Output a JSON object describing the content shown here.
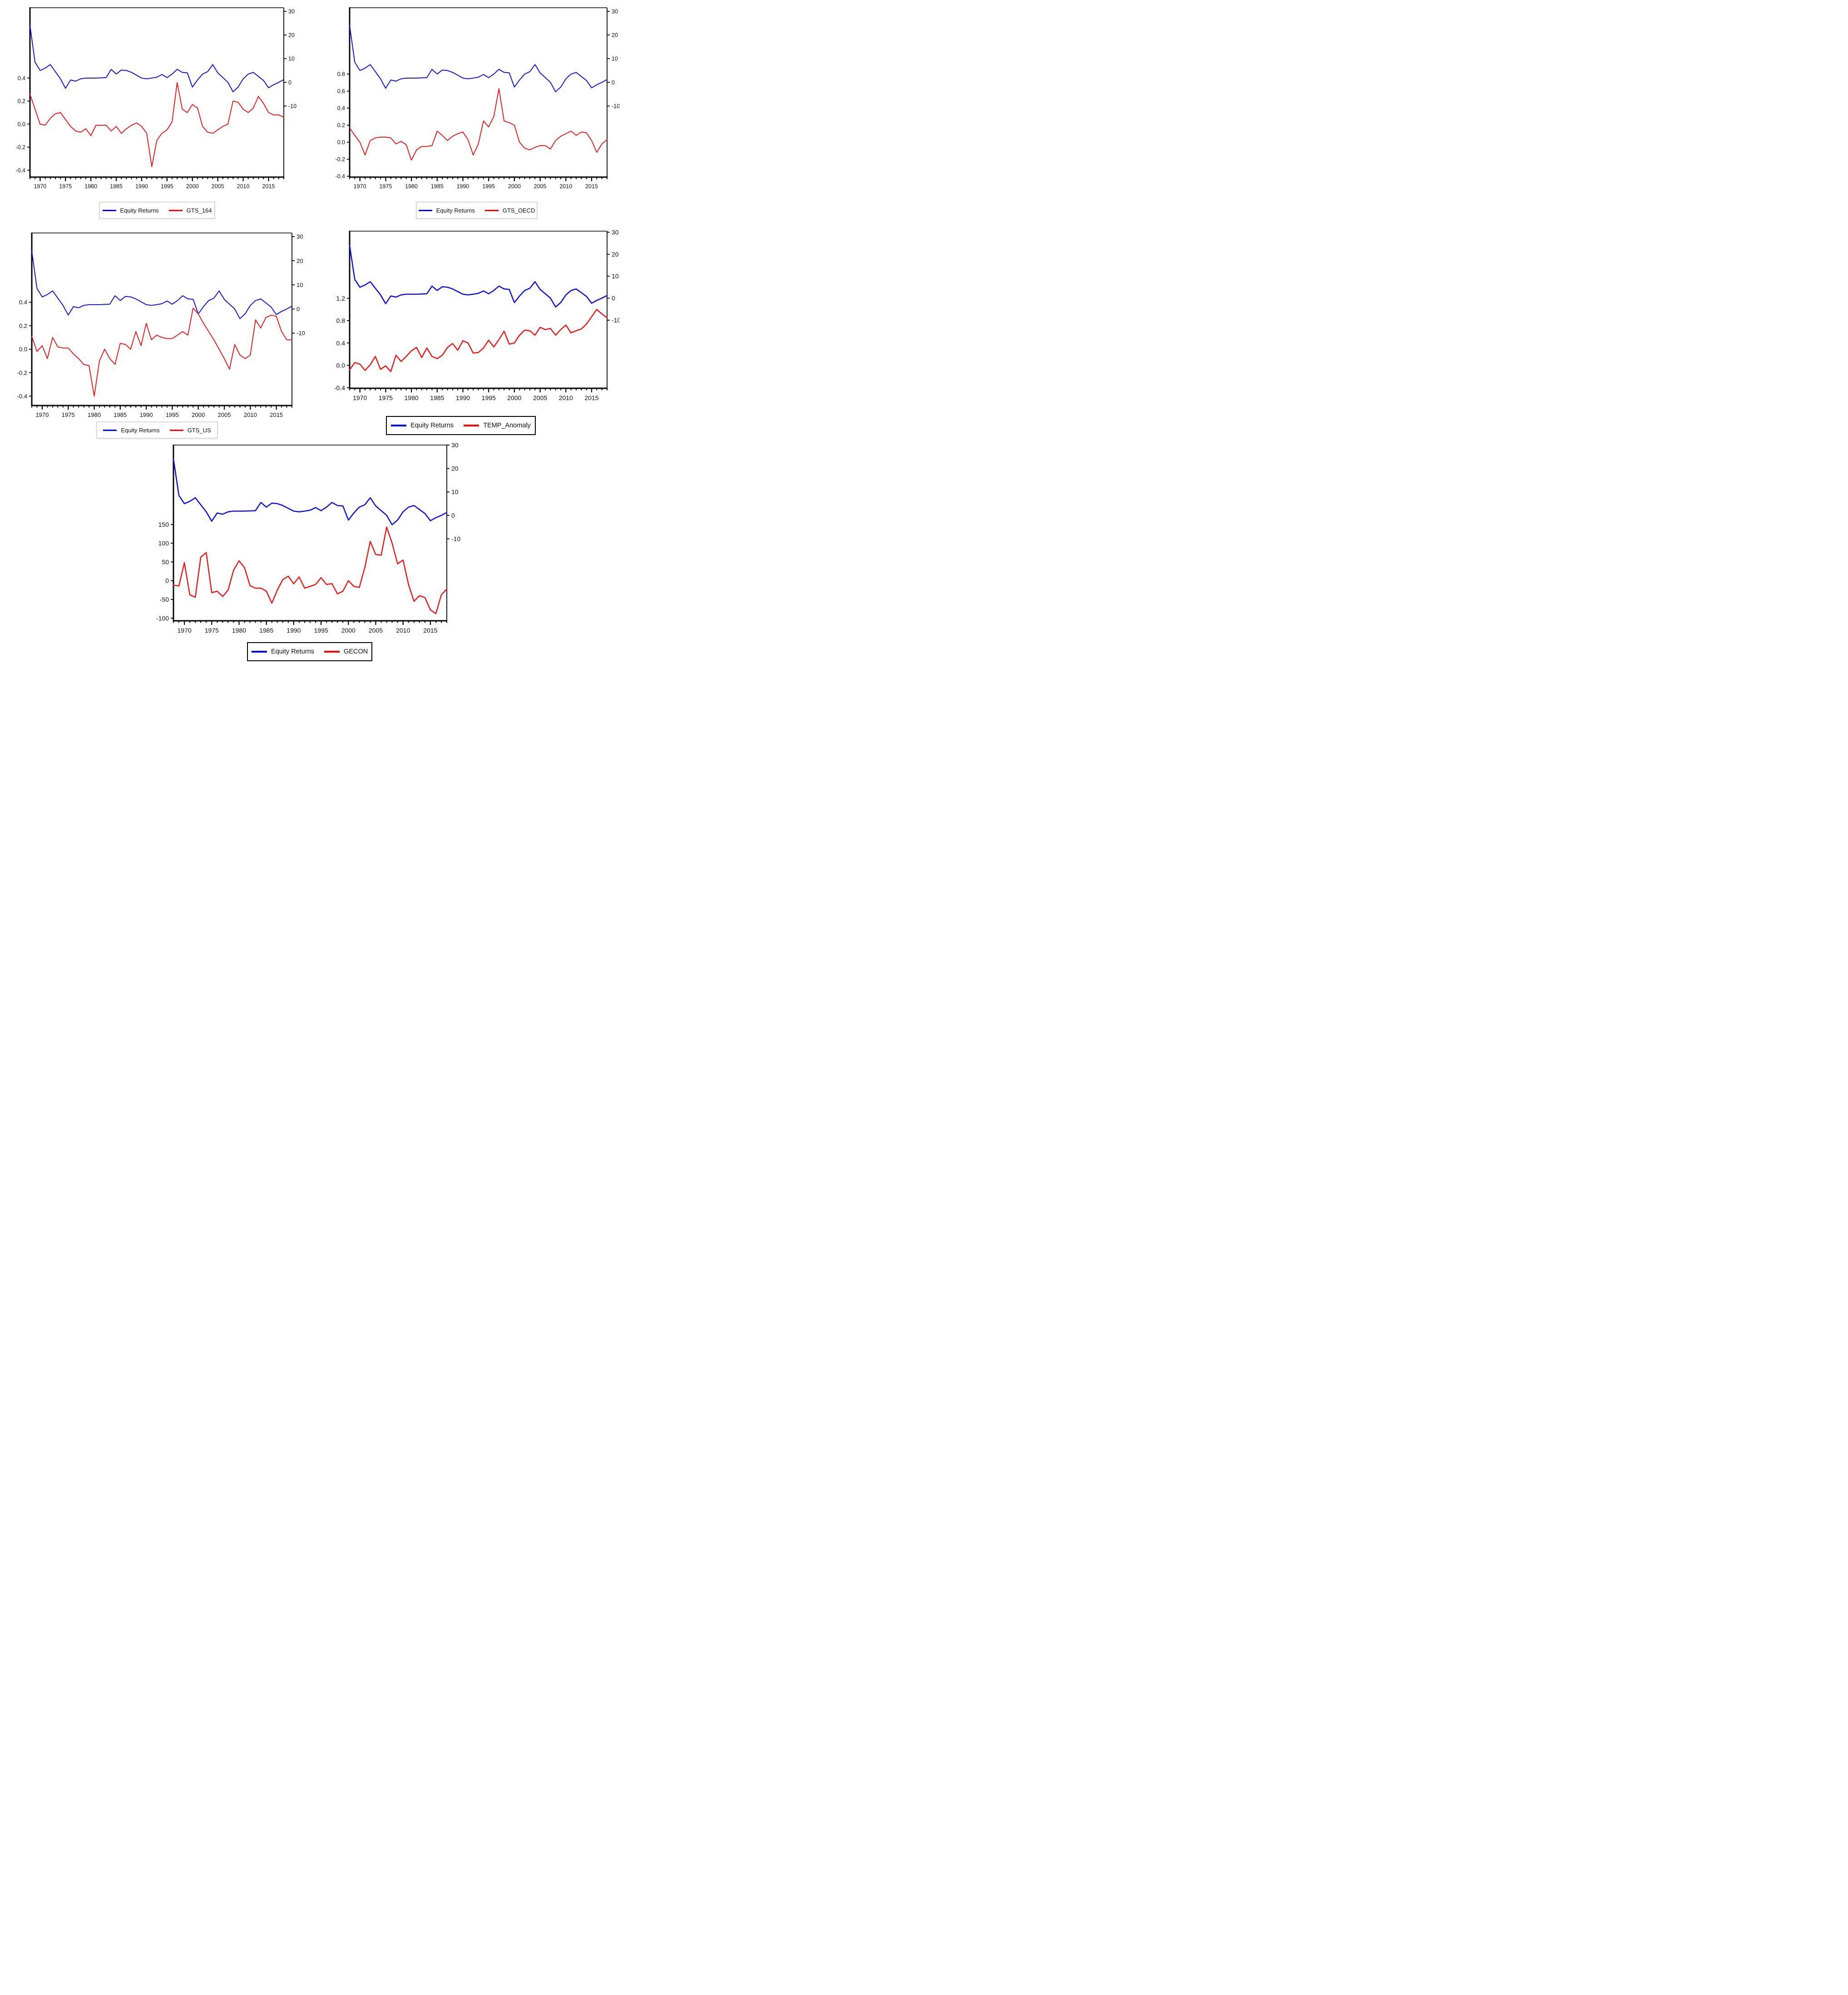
{
  "page": {
    "background": "#ffffff",
    "text_color": "#111111"
  },
  "colors": {
    "equity_line": "#1414d2",
    "series_line": "#e41f1f",
    "legend_blue": "#0000ff",
    "legend_red": "#ff0000",
    "legend_border_gray": "#d9d9d9",
    "legend_border_black": "#000000",
    "axis_color": "#000000"
  },
  "years": [
    1968,
    1969,
    1970,
    1971,
    1972,
    1973,
    1974,
    1975,
    1976,
    1977,
    1978,
    1979,
    1980,
    1981,
    1982,
    1983,
    1984,
    1985,
    1986,
    1987,
    1988,
    1989,
    1990,
    1991,
    1992,
    1993,
    1994,
    1995,
    1996,
    1997,
    1998,
    1999,
    2000,
    2001,
    2002,
    2003,
    2004,
    2005,
    2006,
    2007,
    2008,
    2009,
    2010,
    2011,
    2012,
    2013,
    2014,
    2015,
    2016,
    2017,
    2018
  ],
  "equity_returns": [
    24,
    8.5,
    5,
    6,
    7.5,
    4.5,
    1.5,
    -2.5,
    1,
    0.5,
    1.5,
    1.8,
    1.8,
    1.8,
    1.9,
    2,
    5.5,
    3.5,
    5.2,
    5,
    4.2,
    3,
    1.8,
    1.5,
    1.8,
    2.2,
    3.3,
    2,
    3.5,
    5.5,
    4.2,
    4,
    -2,
    1,
    3.5,
    4.5,
    7.5,
    4,
    2,
    0,
    -4,
    -2,
    1.5,
    3.5,
    4.2,
    2.5,
    0.8,
    -2.3,
    -1,
    0,
    1.2
  ],
  "chart_data": [
    {
      "id": "gts164",
      "type": "line",
      "title": "",
      "legend_border": "#d9d9d9",
      "left_axis": {
        "labels": [
          "0.4",
          "0.2",
          "0.0",
          "-0.2",
          "-0.4"
        ],
        "ticks": [
          0.4,
          0.2,
          0.0,
          -0.2,
          -0.4
        ],
        "top": 1.01,
        "bottom": -0.46
      },
      "right_axis": {
        "labels": [
          "30",
          "20",
          "10",
          "0",
          "-10"
        ],
        "ticks": [
          30,
          20,
          10,
          0,
          -10
        ],
        "top": 31.5,
        "bottom": -40
      },
      "x_axis": {
        "start": 1968,
        "end": 2018,
        "minor_step": 1,
        "major_ticks": [
          1970,
          1975,
          1980,
          1985,
          1990,
          1995,
          2000,
          2005,
          2010,
          2015
        ]
      },
      "series": [
        {
          "name": "Equity Returns",
          "axis": "right",
          "color": "#1414d2",
          "legend_color": "#0000ff",
          "width": 2,
          "values_from": "equity_returns"
        },
        {
          "name": "GTS_164",
          "axis": "left",
          "color": "#e41f1f",
          "legend_color": "#ff0000",
          "width": 2,
          "values": [
            0.26,
            0.13,
            0,
            -0.01,
            0.05,
            0.09,
            0.1,
            0.04,
            -0.02,
            -0.06,
            -0.07,
            -0.04,
            -0.1,
            -0.01,
            -0.01,
            -0.01,
            -0.06,
            -0.02,
            -0.08,
            -0.04,
            -0.01,
            0.01,
            -0.02,
            -0.08,
            -0.37,
            -0.14,
            -0.08,
            -0.05,
            0.02,
            0.36,
            0.13,
            0.1,
            0.17,
            0.14,
            -0.02,
            -0.07,
            -0.08,
            -0.05,
            -0.02,
            0,
            0.2,
            0.19,
            0.13,
            0.1,
            0.14,
            0.24,
            0.18,
            0.1,
            0.08,
            0.08,
            0.06
          ]
        }
      ]
    },
    {
      "id": "gtsoecd",
      "type": "line",
      "title": "",
      "legend_border": "#d9d9d9",
      "left_axis": {
        "labels": [
          "0.8",
          "0.6",
          "0.4",
          "0.2",
          "0.0",
          "-0.2",
          "-0.4"
        ],
        "ticks": [
          0.8,
          0.6,
          0.4,
          0.2,
          0.0,
          -0.2,
          -0.4
        ],
        "top": 1.58,
        "bottom": -0.41
      },
      "right_axis": {
        "labels": [
          "30",
          "20",
          "10",
          "0",
          "-10"
        ],
        "ticks": [
          30,
          20,
          10,
          0,
          -10
        ],
        "top": 31.5,
        "bottom": -40
      },
      "x_axis": {
        "start": 1968,
        "end": 2018,
        "minor_step": 1,
        "major_ticks": [
          1970,
          1975,
          1980,
          1985,
          1990,
          1995,
          2000,
          2005,
          2010,
          2015
        ]
      },
      "series": [
        {
          "name": "Equity Returns",
          "axis": "right",
          "color": "#1414d2",
          "legend_color": "#0000ff",
          "width": 2,
          "values_from": "equity_returns"
        },
        {
          "name": "GTS_OECD",
          "axis": "left",
          "color": "#e41f1f",
          "legend_color": "#ff0000",
          "width": 2,
          "values": [
            0.17,
            0.08,
            0,
            -0.15,
            0.02,
            0.05,
            0.06,
            0.06,
            0.05,
            -0.02,
            0.01,
            -0.03,
            -0.21,
            -0.09,
            -0.05,
            -0.05,
            -0.04,
            0.13,
            0.08,
            0.02,
            0.07,
            0.1,
            0.12,
            0.03,
            -0.15,
            -0.02,
            0.25,
            0.18,
            0.3,
            0.63,
            0.25,
            0.23,
            0.2,
            0,
            -0.07,
            -0.09,
            -0.06,
            -0.04,
            -0.04,
            -0.08,
            0.02,
            0.07,
            0.1,
            0.13,
            0.08,
            0.12,
            0.11,
            0.02,
            -0.12,
            -0.02,
            0.03
          ]
        }
      ]
    },
    {
      "id": "gtsus",
      "type": "line",
      "title": "",
      "legend_border": "#d9d9d9",
      "left_axis": {
        "labels": [
          "0.4",
          "0.2",
          "0.0",
          "-0.2",
          "-0.4"
        ],
        "ticks": [
          0.4,
          0.2,
          0.0,
          -0.2,
          -0.4
        ],
        "top": 0.99,
        "bottom": -0.48
      },
      "right_axis": {
        "labels": [
          "30",
          "20",
          "10",
          "0",
          "-10"
        ],
        "ticks": [
          30,
          20,
          10,
          0,
          -10
        ],
        "top": 31.5,
        "bottom": -40
      },
      "x_axis": {
        "start": 1968,
        "end": 2018,
        "minor_step": 1,
        "major_ticks": [
          1970,
          1975,
          1980,
          1985,
          1990,
          1995,
          2000,
          2005,
          2010,
          2015
        ]
      },
      "series": [
        {
          "name": "Equity Returns",
          "axis": "right",
          "color": "#1414d2",
          "legend_color": "#0000ff",
          "width": 2,
          "values_from": "equity_returns"
        },
        {
          "name": "GTS_US",
          "axis": "left",
          "color": "#e41f1f",
          "legend_color": "#ff0000",
          "width": 2,
          "values": [
            0.11,
            -0.02,
            0.03,
            -0.08,
            0.1,
            0.02,
            0.01,
            0.01,
            -0.04,
            -0.08,
            -0.13,
            -0.14,
            -0.4,
            -0.1,
            0,
            -0.08,
            -0.13,
            0.05,
            0.04,
            0,
            0.15,
            0.03,
            0.22,
            0.08,
            0.12,
            0.1,
            0.09,
            0.09,
            0.12,
            0.15,
            0.12,
            0.35,
            0.3,
            0.22,
            0.15,
            0.08,
            0,
            -0.08,
            -0.17,
            0.04,
            -0.05,
            -0.08,
            -0.05,
            0.25,
            0.18,
            0.27,
            0.29,
            0.28,
            0.15,
            0.08,
            0.08
          ]
        }
      ]
    },
    {
      "id": "temp",
      "type": "line",
      "title": "",
      "legend_border": "#000000",
      "left_axis": {
        "labels": [
          "1.2",
          "0.8",
          "0.4",
          "0.0",
          "-0.4"
        ],
        "ticks": [
          1.2,
          0.8,
          0.4,
          0.0,
          -0.4
        ],
        "top": 2.4,
        "bottom": -0.41
      },
      "right_axis": {
        "labels": [
          "30",
          "20",
          "10",
          "0",
          "-10"
        ],
        "ticks": [
          30,
          20,
          10,
          0,
          -10
        ],
        "top": 30.5,
        "bottom": -41
      },
      "x_axis": {
        "start": 1968,
        "end": 2018,
        "minor_step": 1,
        "major_ticks": [
          1970,
          1975,
          1980,
          1985,
          1990,
          1995,
          2000,
          2005,
          2010,
          2015
        ]
      },
      "series": [
        {
          "name": "Equity Returns",
          "axis": "right",
          "color": "#1414d2",
          "legend_color": "#0000ff",
          "width": 2.6,
          "values_from": "equity_returns"
        },
        {
          "name": "TEMP_Anomaly",
          "axis": "left",
          "color": "#e41f1f",
          "legend_color": "#ff0000",
          "width": 2.6,
          "values": [
            -0.08,
            0.05,
            0.02,
            -0.09,
            0.01,
            0.16,
            -0.07,
            -0.01,
            -0.11,
            0.18,
            0.07,
            0.16,
            0.26,
            0.32,
            0.14,
            0.31,
            0.16,
            0.12,
            0.18,
            0.32,
            0.39,
            0.27,
            0.44,
            0.4,
            0.22,
            0.23,
            0.31,
            0.45,
            0.33,
            0.46,
            0.61,
            0.38,
            0.4,
            0.54,
            0.63,
            0.62,
            0.54,
            0.68,
            0.64,
            0.66,
            0.54,
            0.64,
            0.72,
            0.58,
            0.62,
            0.65,
            0.74,
            0.87,
            1.0,
            0.92,
            0.85
          ]
        }
      ]
    },
    {
      "id": "gecon",
      "type": "line",
      "title": "",
      "legend_border": "#000000",
      "left_axis": {
        "labels": [
          "150",
          "100",
          "50",
          "0",
          "-50",
          "-100"
        ],
        "ticks": [
          150,
          100,
          50,
          0,
          -50,
          -100
        ],
        "top": 362,
        "bottom": -107
      },
      "right_axis": {
        "labels": [
          "30",
          "20",
          "10",
          "0",
          "-10"
        ],
        "ticks": [
          30,
          20,
          10,
          0,
          -10
        ],
        "top": 30,
        "bottom": -45
      },
      "x_axis": {
        "start": 1968,
        "end": 2018,
        "minor_step": 1,
        "major_ticks": [
          1970,
          1975,
          1980,
          1985,
          1990,
          1995,
          2000,
          2005,
          2010,
          2015
        ]
      },
      "series": [
        {
          "name": "Equity Returns",
          "axis": "right",
          "color": "#1414d2",
          "legend_color": "#0000ff",
          "width": 2.6,
          "values_from": "equity_returns"
        },
        {
          "name": "GECON",
          "axis": "left",
          "color": "#e41f1f",
          "legend_color": "#ff0000",
          "width": 2.6,
          "values": [
            -12,
            -14,
            48,
            -38,
            -44,
            63,
            75,
            -32,
            -28,
            -42,
            -25,
            28,
            53,
            35,
            -13,
            -20,
            -20,
            -28,
            -60,
            -25,
            3,
            12,
            -8,
            10,
            -20,
            -15,
            -10,
            8,
            -10,
            -8,
            -35,
            -28,
            0,
            -15,
            -18,
            35,
            105,
            70,
            68,
            143,
            100,
            45,
            55,
            -10,
            -55,
            -40,
            -45,
            -78,
            -88,
            -38,
            -22
          ]
        }
      ]
    }
  ]
}
